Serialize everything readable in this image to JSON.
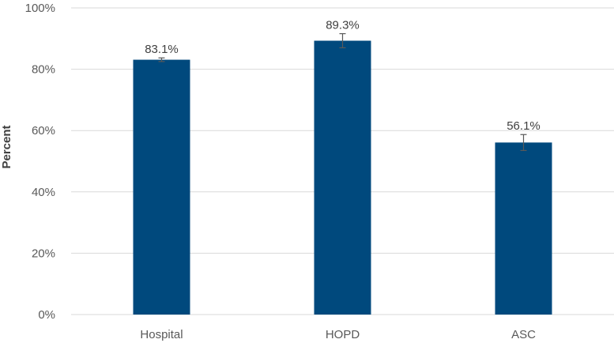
{
  "chart_data": {
    "type": "bar",
    "categories": [
      "Hospital",
      "HOPD",
      "ASC"
    ],
    "values": [
      83.1,
      89.3,
      56.1
    ],
    "data_labels": [
      "83.1%",
      "89.3%",
      "56.1%"
    ],
    "error_bars": [
      {
        "low": 82.5,
        "high": 83.7
      },
      {
        "low": 87.0,
        "high": 91.6
      },
      {
        "low": 53.5,
        "high": 58.7
      }
    ],
    "ylabel": "Percent",
    "xlabel": "",
    "ylim": [
      0,
      100
    ],
    "yticks": [
      0,
      20,
      40,
      60,
      80,
      100
    ],
    "ytick_labels": [
      "0%",
      "20%",
      "40%",
      "60%",
      "80%",
      "100%"
    ],
    "grid": true,
    "colors": {
      "bar": "#00497D",
      "grid": "#D9D9D9",
      "error_bar": "#595959"
    }
  }
}
